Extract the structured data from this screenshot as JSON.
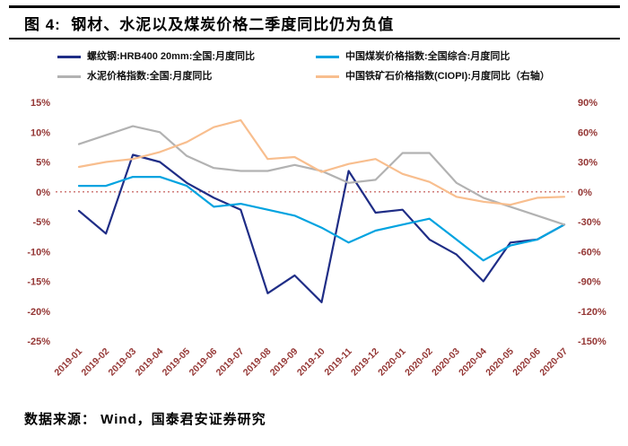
{
  "title": "图 4:  钢材、水泥以及煤炭价格二季度同比仍为负值",
  "source": "数据来源： Wind，国泰君安证券研究",
  "colors": {
    "rebar": "#1F2D86",
    "coal": "#00A3E0",
    "cement": "#B2B2B2",
    "iron_ore": "#F8BE8E",
    "axis_text": "#943634",
    "zero_line": "#C0504D",
    "title_text": "#000000",
    "background": "#FFFFFF"
  },
  "chart_data": {
    "type": "line",
    "title": "钢材、水泥以及煤炭价格二季度同比仍为负值",
    "xlabel": "",
    "ylabel": "",
    "grid": false,
    "legend_position": "top",
    "categories": [
      "2019-01",
      "2019-02",
      "2019-03",
      "2019-04",
      "2019-05",
      "2019-06",
      "2019-07",
      "2019-08",
      "2019-09",
      "2019-10",
      "2019-11",
      "2019-12",
      "2020-01",
      "2020-02",
      "2020-03",
      "2020-04",
      "2020-05",
      "2020-06",
      "2020-07"
    ],
    "series": [
      {
        "name": "螺纹钢:HRB400 20mm:全国:月度同比",
        "axis": "left",
        "color": "#1F2D86",
        "values": [
          -3.2,
          -7.0,
          6.2,
          5.0,
          1.5,
          -1.0,
          -3.0,
          -17.0,
          -14.0,
          -18.5,
          3.5,
          -3.5,
          -3.0,
          -8.0,
          -10.5,
          -15.0,
          -8.5,
          -8.0,
          -5.5
        ]
      },
      {
        "name": "中国煤炭价格指数:全国综合:月度同比",
        "axis": "left",
        "color": "#00A3E0",
        "values": [
          1.0,
          1.0,
          2.5,
          2.5,
          1.0,
          -2.5,
          -2.0,
          -3.0,
          -4.0,
          -6.0,
          -8.5,
          -6.5,
          -5.5,
          -4.5,
          -8.0,
          -11.5,
          -9.0,
          -8.0,
          -5.5
        ]
      },
      {
        "name": "水泥价格指数:全国:月度同比",
        "axis": "left",
        "color": "#B2B2B2",
        "values": [
          8.0,
          9.5,
          11.0,
          10.0,
          6.0,
          4.0,
          3.5,
          3.5,
          4.5,
          3.5,
          1.5,
          2.0,
          6.5,
          6.5,
          1.5,
          -1.0,
          -2.5,
          -4.0,
          -5.5
        ]
      },
      {
        "name": "中国铁矿石价格指数(CIOPI):月度同比（右轴）",
        "axis": "right",
        "color": "#F8BE8E",
        "values": [
          25,
          30,
          33,
          40,
          50,
          65,
          72,
          33,
          35,
          20,
          28,
          33,
          18,
          10,
          -5,
          -10,
          -13,
          -6,
          -5
        ]
      }
    ],
    "left_axis": {
      "min": -25,
      "max": 15,
      "ticks": [
        "15%",
        "10%",
        "5%",
        "0%",
        "-5%",
        "-10%",
        "-15%",
        "-20%",
        "-25%"
      ]
    },
    "right_axis": {
      "min": -150,
      "max": 90,
      "ticks": [
        "90%",
        "60%",
        "30%",
        "0%",
        "-30%",
        "-60%",
        "-90%",
        "-120%",
        "-150%"
      ]
    },
    "zero_line": {
      "value": 0,
      "style": "dotted",
      "color": "#C0504D"
    }
  }
}
